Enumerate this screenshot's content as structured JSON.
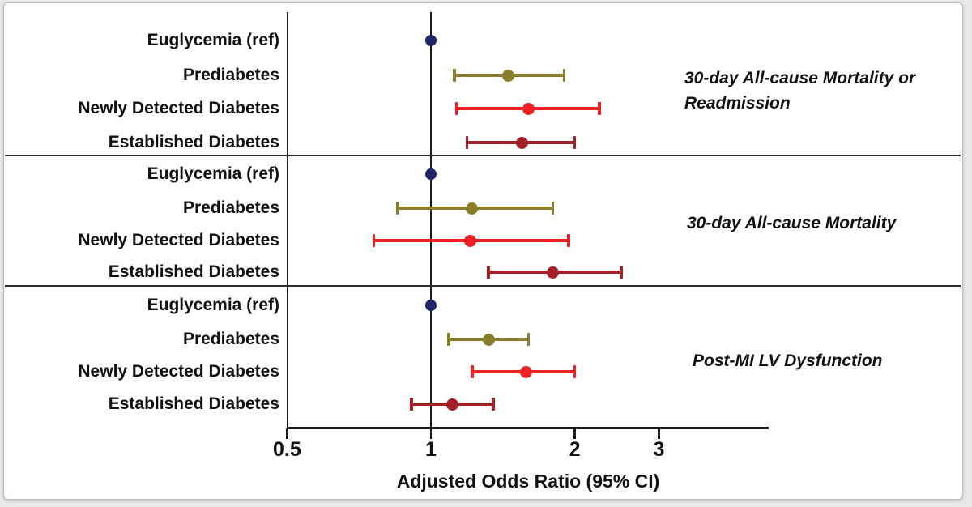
{
  "chart_data": {
    "type": "forest",
    "x_scale": "log",
    "xlabel": "Adjusted Odds Ratio (95% CI)",
    "x_ticks": [
      {
        "label": "0.5",
        "value": 0.5
      },
      {
        "label": "1",
        "value": 1
      },
      {
        "label": "2",
        "value": 2
      },
      {
        "label": "3",
        "value": 3
      }
    ],
    "x_range": [
      0.5,
      3.9
    ],
    "reference_value": 1,
    "grid": "off",
    "legend": "none",
    "colors": {
      "euglycemia": "#1f2668",
      "prediabetes": "#8a7d2a",
      "newly_detected": "#ee2224",
      "established": "#a32126",
      "axis": "#1a1a1a"
    },
    "panels": [
      {
        "title": "30-day All-cause Mortality or Readmission",
        "title_lines": [
          "30-day All-cause Mortality or",
          "Readmission"
        ],
        "rows": [
          {
            "label": "Euglycemia (ref)",
            "or": 1.0,
            "lo": null,
            "hi": null,
            "color": "euglycemia"
          },
          {
            "label": "Prediabetes",
            "or": 1.45,
            "lo": 1.12,
            "hi": 1.9,
            "color": "prediabetes"
          },
          {
            "label": "Newly Detected Diabetes",
            "or": 1.6,
            "lo": 1.13,
            "hi": 2.25,
            "color": "newly_detected"
          },
          {
            "label": "Established Diabetes",
            "or": 1.55,
            "lo": 1.19,
            "hi": 2.0,
            "color": "established"
          }
        ]
      },
      {
        "title": "30-day All-cause Mortality",
        "title_lines": [
          "30-day All-cause Mortality"
        ],
        "rows": [
          {
            "label": "Euglycemia (ref)",
            "or": 1.0,
            "lo": null,
            "hi": null,
            "color": "euglycemia"
          },
          {
            "label": "Prediabetes",
            "or": 1.22,
            "lo": 0.85,
            "hi": 1.8,
            "color": "prediabetes"
          },
          {
            "label": "Newly Detected Diabetes",
            "or": 1.21,
            "lo": 0.76,
            "hi": 1.94,
            "color": "newly_detected"
          },
          {
            "label": "Established Diabetes",
            "or": 1.8,
            "lo": 1.32,
            "hi": 2.5,
            "color": "established"
          }
        ]
      },
      {
        "title": "Post-MI LV Dysfunction",
        "title_lines": [
          "Post-MI LV Dysfunction"
        ],
        "rows": [
          {
            "label": "Euglycemia (ref)",
            "or": 1.0,
            "lo": null,
            "hi": null,
            "color": "euglycemia"
          },
          {
            "label": "Prediabetes",
            "or": 1.32,
            "lo": 1.09,
            "hi": 1.6,
            "color": "prediabetes"
          },
          {
            "label": "Newly Detected Diabetes",
            "or": 1.58,
            "lo": 1.22,
            "hi": 2.0,
            "color": "newly_detected"
          },
          {
            "label": "Established Diabetes",
            "or": 1.11,
            "lo": 0.91,
            "hi": 1.35,
            "color": "established"
          }
        ]
      }
    ]
  }
}
